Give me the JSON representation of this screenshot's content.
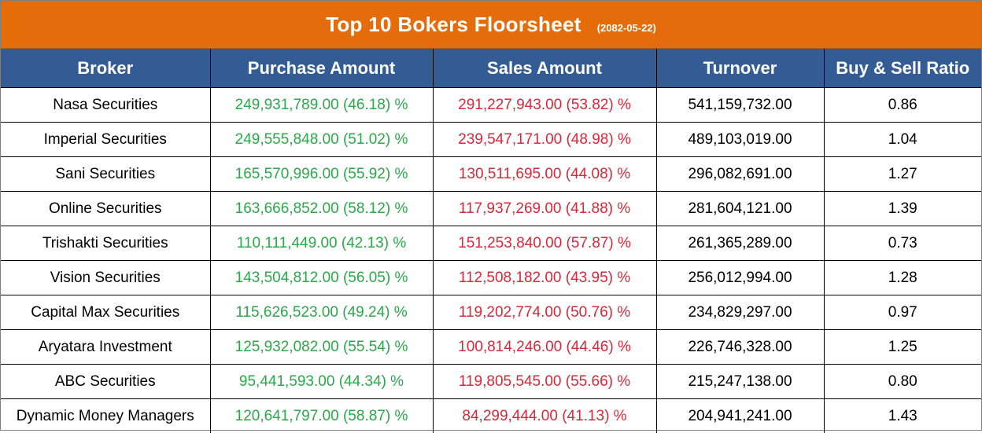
{
  "title": "Top 10 Bokers Floorsheet",
  "date": "(2082-05-22)",
  "columns": [
    "Broker",
    "Purchase Amount",
    "Sales Amount",
    "Turnover",
    "Buy & Sell Ratio"
  ],
  "colors": {
    "title_bg": "#e46c0a",
    "header_bg": "#335c94",
    "purchase": "#2aa84a",
    "sales": "#d8283a"
  },
  "rows": [
    {
      "broker": "Nasa Securities",
      "purchase": "249,931,789.00 (46.18) %",
      "sales": "291,227,943.00 (53.82) %",
      "turnover": "541,159,732.00",
      "ratio": "0.86"
    },
    {
      "broker": "Imperial Securities",
      "purchase": "249,555,848.00 (51.02) %",
      "sales": "239,547,171.00 (48.98) %",
      "turnover": "489,103,019.00",
      "ratio": "1.04"
    },
    {
      "broker": "Sani Securities",
      "purchase": "165,570,996.00 (55.92) %",
      "sales": "130,511,695.00 (44.08) %",
      "turnover": "296,082,691.00",
      "ratio": "1.27"
    },
    {
      "broker": "Online Securities",
      "purchase": "163,666,852.00 (58.12) %",
      "sales": "117,937,269.00 (41.88) %",
      "turnover": "281,604,121.00",
      "ratio": "1.39"
    },
    {
      "broker": "Trishakti Securities",
      "purchase": "110,111,449.00 (42.13) %",
      "sales": "151,253,840.00 (57.87) %",
      "turnover": "261,365,289.00",
      "ratio": "0.73"
    },
    {
      "broker": "Vision Securities",
      "purchase": "143,504,812.00 (56.05) %",
      "sales": "112,508,182.00 (43.95) %",
      "turnover": "256,012,994.00",
      "ratio": "1.28"
    },
    {
      "broker": "Capital Max Securities",
      "purchase": "115,626,523.00 (49.24) %",
      "sales": "119,202,774.00 (50.76) %",
      "turnover": "234,829,297.00",
      "ratio": "0.97"
    },
    {
      "broker": "Aryatara Investment",
      "purchase": "125,932,082.00 (55.54) %",
      "sales": "100,814,246.00 (44.46) %",
      "turnover": "226,746,328.00",
      "ratio": "1.25"
    },
    {
      "broker": "ABC Securities",
      "purchase": "95,441,593.00 (44.34) %",
      "sales": "119,805,545.00 (55.66) %",
      "turnover": "215,247,138.00",
      "ratio": "0.80"
    },
    {
      "broker": "Dynamic Money Managers",
      "purchase": "120,641,797.00 (58.87) %",
      "sales": "84,299,444.00 (41.13) %",
      "turnover": "204,941,241.00",
      "ratio": "1.43"
    }
  ]
}
